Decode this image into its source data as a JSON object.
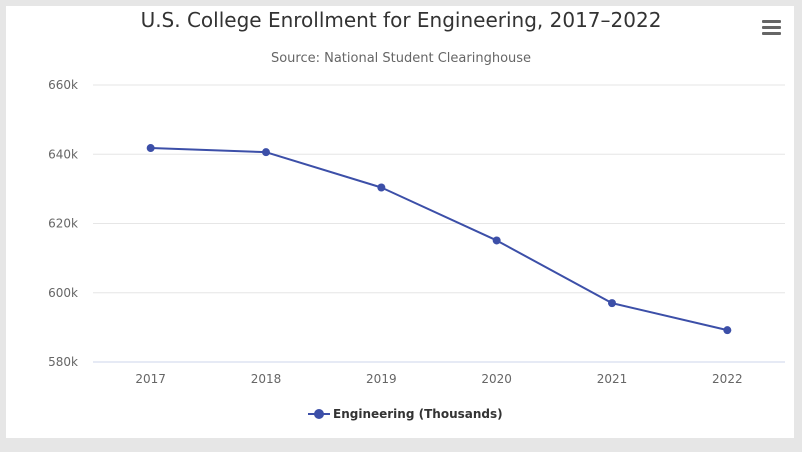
{
  "chart_data": {
    "type": "line",
    "title": "U.S. College Enrollment for Engineering, 2017–2022",
    "subtitle": "Source: National Student Clearinghouse",
    "categories": [
      "2017",
      "2018",
      "2019",
      "2020",
      "2021",
      "2022"
    ],
    "series": [
      {
        "name": "Engineering (Thousands)",
        "values": [
          641.8,
          640.6,
          630.4,
          615.1,
          597.0,
          589.2
        ],
        "color": "#3c4fa8"
      }
    ],
    "ylim": [
      580,
      660
    ],
    "yticks": [
      "580k",
      "600k",
      "620k",
      "640k",
      "660k"
    ],
    "grid": true,
    "legend_position": "bottom-center"
  },
  "menu_icon": "hamburger-menu-icon"
}
